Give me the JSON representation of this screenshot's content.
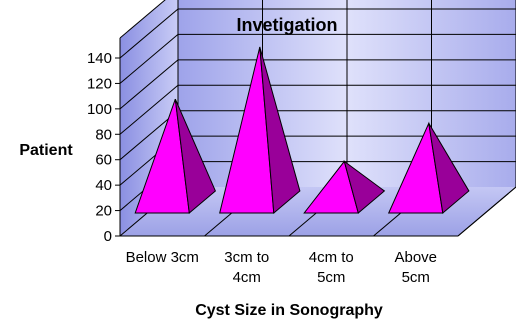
{
  "chart_data": {
    "type": "bar",
    "shape": "pyramid",
    "style": "3d",
    "title": "Invetigation",
    "xlabel": "Cyst Size in Sonography",
    "ylabel": "Patient",
    "categories": [
      [
        "Below 3cm"
      ],
      [
        "3cm to",
        "4cm"
      ],
      [
        "4cm to",
        "5cm"
      ],
      [
        "Above",
        "5cm"
      ]
    ],
    "values": [
      99,
      140,
      50,
      80
    ],
    "ylim": [
      0,
      140
    ],
    "yticks": [
      0,
      20,
      40,
      60,
      80,
      100,
      120,
      140
    ],
    "grid": true,
    "legend": "none",
    "colors": {
      "pyramid_front": "#ff00ff",
      "pyramid_side": "#990099",
      "wall": "#b8bcf0",
      "floor": "#b3b6ee"
    }
  }
}
